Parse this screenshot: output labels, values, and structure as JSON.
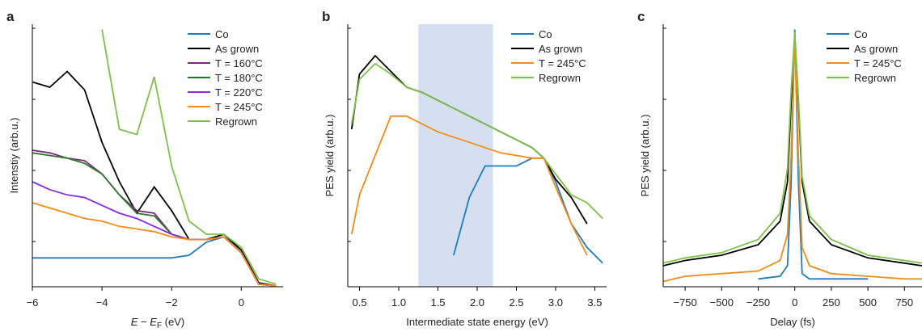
{
  "chart_data": [
    {
      "type": "line",
      "panel": "a",
      "ylabel": "Intenstiy (arb.u.)",
      "xlabel": [
        "E",
        " − ",
        "E",
        "F",
        " (eV)"
      ],
      "xlim": [
        -6,
        1.2
      ],
      "ylim": [
        0,
        100
      ],
      "xticks": [
        {
          "value": -6,
          "label": "−6"
        },
        {
          "value": -4,
          "label": "−4"
        },
        {
          "value": -2,
          "label": "−2"
        },
        0
      ],
      "x": [
        -6,
        -5.5,
        -5,
        -4.5,
        -4,
        -3.5,
        -3,
        -2.5,
        -2,
        -1.5,
        -1,
        -0.5,
        0,
        0.5,
        1
      ],
      "series": [
        {
          "name": "Co",
          "color": "#1b7dc0",
          "values": [
            11,
            11,
            11,
            11,
            11,
            11,
            11,
            11,
            11,
            12,
            17,
            19,
            14,
            1,
            0.3
          ]
        },
        {
          "name": "As grown",
          "color": "#000000",
          "values": [
            78,
            76,
            82,
            75,
            55,
            40,
            28,
            38,
            29,
            18,
            18,
            20,
            14,
            1.5,
            0.3
          ]
        },
        {
          "name": "T = 160°C",
          "color": "#7b2a7e",
          "values": [
            52,
            51,
            49,
            48,
            43,
            35,
            29,
            28,
            20,
            18,
            18,
            19,
            13,
            1,
            0.3
          ]
        },
        {
          "name": "T = 180°C",
          "color": "#2a7a2a",
          "values": [
            51,
            50,
            49,
            47,
            43,
            35,
            28,
            27,
            20,
            18,
            18,
            19,
            13,
            1,
            0.3
          ]
        },
        {
          "name": "T = 220°C",
          "color": "#8a2be2",
          "values": [
            40,
            37,
            35,
            34,
            31,
            28,
            26,
            23,
            20,
            18,
            18,
            19,
            13,
            1,
            0.3
          ]
        },
        {
          "name": "T = 245°C",
          "color": "#f28c1a",
          "values": [
            32,
            30,
            28,
            26,
            25,
            23,
            22,
            21,
            19,
            18,
            18,
            19,
            13,
            1,
            0.3
          ]
        },
        {
          "name": "Regrown",
          "color": "#7cc24a",
          "values": [
            null,
            null,
            null,
            null,
            98,
            60,
            58,
            80,
            46,
            25,
            20,
            20,
            15,
            3,
            1
          ]
        }
      ]
    },
    {
      "type": "line",
      "panel": "b",
      "ylabel": "PES yield (arb.u.)",
      "xlabel": [
        "Intermediate state energy (eV)"
      ],
      "xlim": [
        0.35,
        3.65
      ],
      "ylim": [
        0,
        100
      ],
      "shade": [
        1.25,
        2.2
      ],
      "xticks": [
        0.5,
        {
          "value": 1,
          "label": "1.0"
        },
        1.5,
        {
          "value": 2,
          "label": "2.0"
        },
        2.5,
        {
          "value": 3,
          "label": "3.0"
        },
        3.5
      ],
      "x": [
        0.4,
        0.5,
        0.7,
        0.9,
        1.1,
        1.3,
        1.5,
        1.7,
        1.9,
        2.1,
        2.3,
        2.5,
        2.7,
        2.85,
        3.0,
        3.2,
        3.4,
        3.6
      ],
      "series": [
        {
          "name": "Co",
          "color": "#1b7dc0",
          "values": [
            null,
            null,
            null,
            null,
            null,
            null,
            null,
            12,
            34,
            46,
            46,
            46,
            49,
            49,
            40,
            24,
            15,
            9
          ]
        },
        {
          "name": "As grown",
          "color": "#000000",
          "values": [
            60,
            81,
            88,
            82,
            76,
            74,
            71,
            68,
            65,
            62,
            59,
            56,
            53,
            49,
            41,
            34,
            24,
            null
          ]
        },
        {
          "name": "T = 245°C",
          "color": "#f28c1a",
          "values": [
            20,
            35,
            50,
            65,
            65,
            62,
            59,
            57,
            55,
            53,
            51,
            50,
            49,
            49,
            38,
            24,
            12,
            null
          ]
        },
        {
          "name": "Regrown",
          "color": "#7cc24a",
          "values": [
            62,
            79,
            85,
            81,
            76,
            74,
            71,
            68,
            65,
            62,
            59,
            56,
            53,
            49,
            43,
            35,
            32,
            26
          ]
        }
      ]
    },
    {
      "type": "line",
      "panel": "c",
      "ylabel": "PES yield (arb.u.)",
      "xlabel": [
        "Delay (fs)"
      ],
      "xlim": [
        -900,
        870
      ],
      "ylim": [
        0,
        100
      ],
      "xticks": [
        {
          "value": -750,
          "label": "−750"
        },
        {
          "value": -500,
          "label": "−500"
        },
        {
          "value": -250,
          "label": "−250"
        },
        0,
        250,
        500,
        750
      ],
      "x": [
        -900,
        -750,
        -500,
        -250,
        -100,
        -50,
        -25,
        0,
        25,
        50,
        100,
        250,
        500,
        750,
        870
      ],
      "series": [
        {
          "name": "Co",
          "color": "#1b7dc0",
          "values": [
            null,
            null,
            null,
            3,
            4,
            8,
            40,
            98,
            40,
            5,
            3,
            3,
            3,
            null,
            null
          ]
        },
        {
          "name": "As grown",
          "color": "#000000",
          "values": [
            8,
            10,
            12,
            16,
            25,
            40,
            70,
            96,
            70,
            40,
            25,
            16,
            11,
            9,
            8
          ]
        },
        {
          "name": "T = 245°C",
          "color": "#f28c1a",
          "values": [
            2,
            4,
            5,
            6,
            10,
            20,
            50,
            95,
            50,
            15,
            8,
            5,
            4,
            3,
            3
          ]
        },
        {
          "name": "Regrown",
          "color": "#7cc24a",
          "values": [
            9,
            11,
            13,
            18,
            28,
            45,
            75,
            97,
            72,
            42,
            27,
            18,
            12,
            10,
            9
          ]
        }
      ]
    }
  ]
}
